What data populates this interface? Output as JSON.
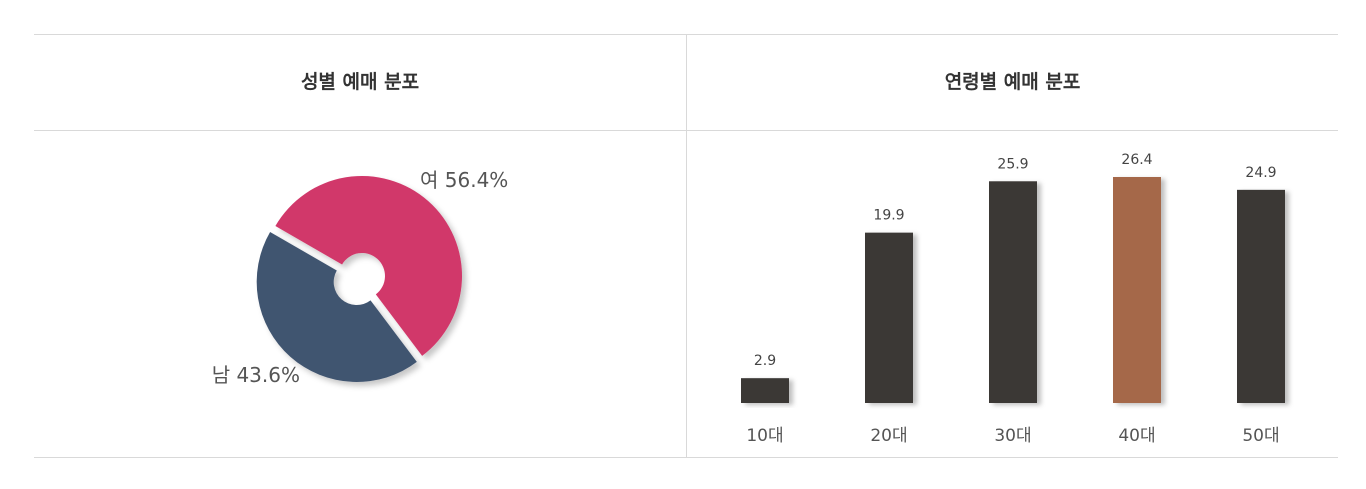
{
  "panels": {
    "gender_title": "성별 예매 분포",
    "age_title": "연령별 예매 분포"
  },
  "chart_data": [
    {
      "type": "pie",
      "title": "성별 예매 분포",
      "donut": true,
      "slices": [
        {
          "label": "여",
          "value": 56.4,
          "display": "여 56.4%",
          "color": "#d1376a",
          "exploded": false
        },
        {
          "label": "남",
          "value": 43.6,
          "display": "남 43.6%",
          "color": "#415470",
          "exploded": true
        }
      ]
    },
    {
      "type": "bar",
      "title": "연령별 예매 분포",
      "categories": [
        "10대",
        "20대",
        "30대",
        "40대",
        "50대"
      ],
      "values": [
        2.9,
        19.9,
        25.9,
        26.4,
        24.9
      ],
      "value_labels": [
        "2.9",
        "19.9",
        "25.9",
        "26.4",
        "24.9"
      ],
      "colors": [
        "#3a3735",
        "#3a3735",
        "#3a3735",
        "#a5674a",
        "#3a3735"
      ],
      "highlight_index": 3,
      "grid": false,
      "ylim": [
        0,
        30
      ]
    }
  ]
}
